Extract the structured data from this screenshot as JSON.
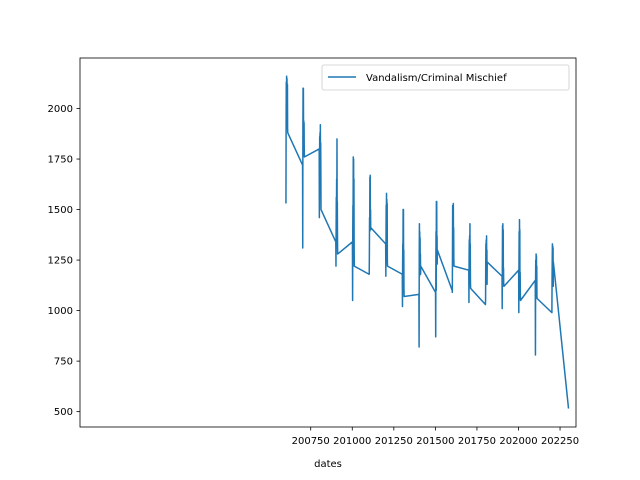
{
  "chart_data": {
    "type": "line",
    "title": "",
    "xlabel": "dates",
    "ylabel": "",
    "xlim": [
      199362,
      202346
    ],
    "ylim": [
      424,
      2250
    ],
    "xticks": [
      200750,
      201000,
      201250,
      201500,
      201750,
      202000,
      202250
    ],
    "yticks": [
      500,
      750,
      1000,
      1250,
      1500,
      1750,
      2000
    ],
    "grid": false,
    "legend": {
      "placement": "top-right",
      "entries": [
        "Vandalism/Criminal Mischief"
      ]
    },
    "series": [
      {
        "name": "Vandalism/Criminal Mischief",
        "color": "#1f77b4",
        "x": [
          200601,
          200602,
          200603,
          200604,
          200605,
          200606,
          200607,
          200608,
          200609,
          200610,
          200611,
          200612,
          200701,
          200702,
          200703,
          200704,
          200705,
          200706,
          200707,
          200708,
          200709,
          200710,
          200711,
          200712,
          200801,
          200802,
          200803,
          200804,
          200805,
          200806,
          200807,
          200808,
          200809,
          200810,
          200811,
          200812,
          200901,
          200902,
          200903,
          200904,
          200905,
          200906,
          200907,
          200908,
          200909,
          200910,
          200911,
          200912,
          201001,
          201002,
          201003,
          201004,
          201005,
          201006,
          201007,
          201008,
          201009,
          201010,
          201011,
          201012,
          201101,
          201102,
          201103,
          201104,
          201105,
          201106,
          201107,
          201108,
          201109,
          201110,
          201111,
          201112,
          201201,
          201202,
          201203,
          201204,
          201205,
          201206,
          201207,
          201208,
          201209,
          201210,
          201211,
          201212,
          201301,
          201302,
          201303,
          201304,
          201305,
          201306,
          201307,
          201308,
          201309,
          201310,
          201311,
          201312,
          201401,
          201402,
          201403,
          201404,
          201405,
          201406,
          201407,
          201408,
          201409,
          201410,
          201411,
          201412,
          201501,
          201502,
          201503,
          201504,
          201505,
          201506,
          201507,
          201508,
          201509,
          201510,
          201511,
          201512,
          201601,
          201602,
          201603,
          201604,
          201605,
          201606,
          201607,
          201608,
          201609,
          201610,
          201611,
          201612,
          201701,
          201702,
          201703,
          201704,
          201705,
          201706,
          201707,
          201708,
          201709,
          201710,
          201711,
          201712,
          201801,
          201802,
          201803,
          201804,
          201805,
          201806,
          201807,
          201808,
          201809,
          201810,
          201811,
          201812,
          201901,
          201902,
          201903,
          201904,
          201905,
          201906,
          201907,
          201908,
          201909,
          201910,
          201911,
          201912,
          202001,
          202002,
          202003,
          202004,
          202005,
          202006,
          202007,
          202008,
          202009,
          202010,
          202011,
          202012,
          202101,
          202102,
          202103,
          202104,
          202105,
          202106,
          202107,
          202108,
          202109,
          202110,
          202111,
          202112,
          202201,
          202202,
          202203,
          202204,
          202205,
          202206,
          202207,
          202208,
          202209,
          202210,
          202301
        ],
        "y": [
          1530,
          1900,
          2130,
          1960,
          2160,
          2080,
          2150,
          2100,
          1950,
          2120,
          1900,
          1880,
          1720,
          1310,
          1890,
          2100,
          2060,
          2100,
          1870,
          1940,
          1820,
          1930,
          1800,
          1760,
          1800,
          1460,
          1700,
          1860,
          1840,
          1880,
          1680,
          1920,
          1720,
          1830,
          1700,
          1500,
          1340,
          1220,
          1420,
          1560,
          1500,
          1650,
          1380,
          1850,
          1510,
          1540,
          1390,
          1280,
          1340,
          1050,
          1390,
          1520,
          1500,
          1760,
          1690,
          1750,
          1530,
          1650,
          1360,
          1220,
          1180,
          1180,
          1290,
          1460,
          1390,
          1660,
          1490,
          1670,
          1460,
          1500,
          1400,
          1410,
          1330,
          1170,
          1350,
          1520,
          1400,
          1580,
          1360,
          1550,
          1340,
          1530,
          1250,
          1220,
          1180,
          1020,
          1240,
          1330,
          1290,
          1500,
          1290,
          1500,
          1180,
          1300,
          1110,
          1070,
          1080,
          820,
          1290,
          1430,
          1170,
          1390,
          1210,
          1360,
          1200,
          1280,
          1180,
          1220,
          1090,
          870,
          1250,
          1390,
          1100,
          1540,
          1260,
          1540,
          1260,
          1370,
          1230,
          1300,
          1100,
          1090,
          1300,
          1520,
          1310,
          1420,
          1380,
          1530,
          1300,
          1410,
          1260,
          1220,
          1200,
          1040,
          1280,
          1350,
          1200,
          1370,
          1260,
          1430,
          1200,
          1330,
          1140,
          1110,
          1030,
          1050,
          1230,
          1330,
          1290,
          1350,
          1240,
          1370,
          1220,
          1300,
          1130,
          1240,
          1170,
          1010,
          1250,
          1420,
          1200,
          1430,
          1200,
          1400,
          1180,
          1210,
          1130,
          1120,
          1200,
          990,
          1250,
          1390,
          1150,
          1450,
          1340,
          1400,
          1060,
          1190,
          1100,
          1050,
          1150,
          780,
          1170,
          1250,
          1090,
          1280,
          1140,
          1270,
          1120,
          1220,
          1070,
          1060,
          990,
          1150,
          1250,
          1330,
          1150,
          1320,
          1300,
          1310,
          1120,
          1240,
          515
        ]
      }
    ]
  }
}
